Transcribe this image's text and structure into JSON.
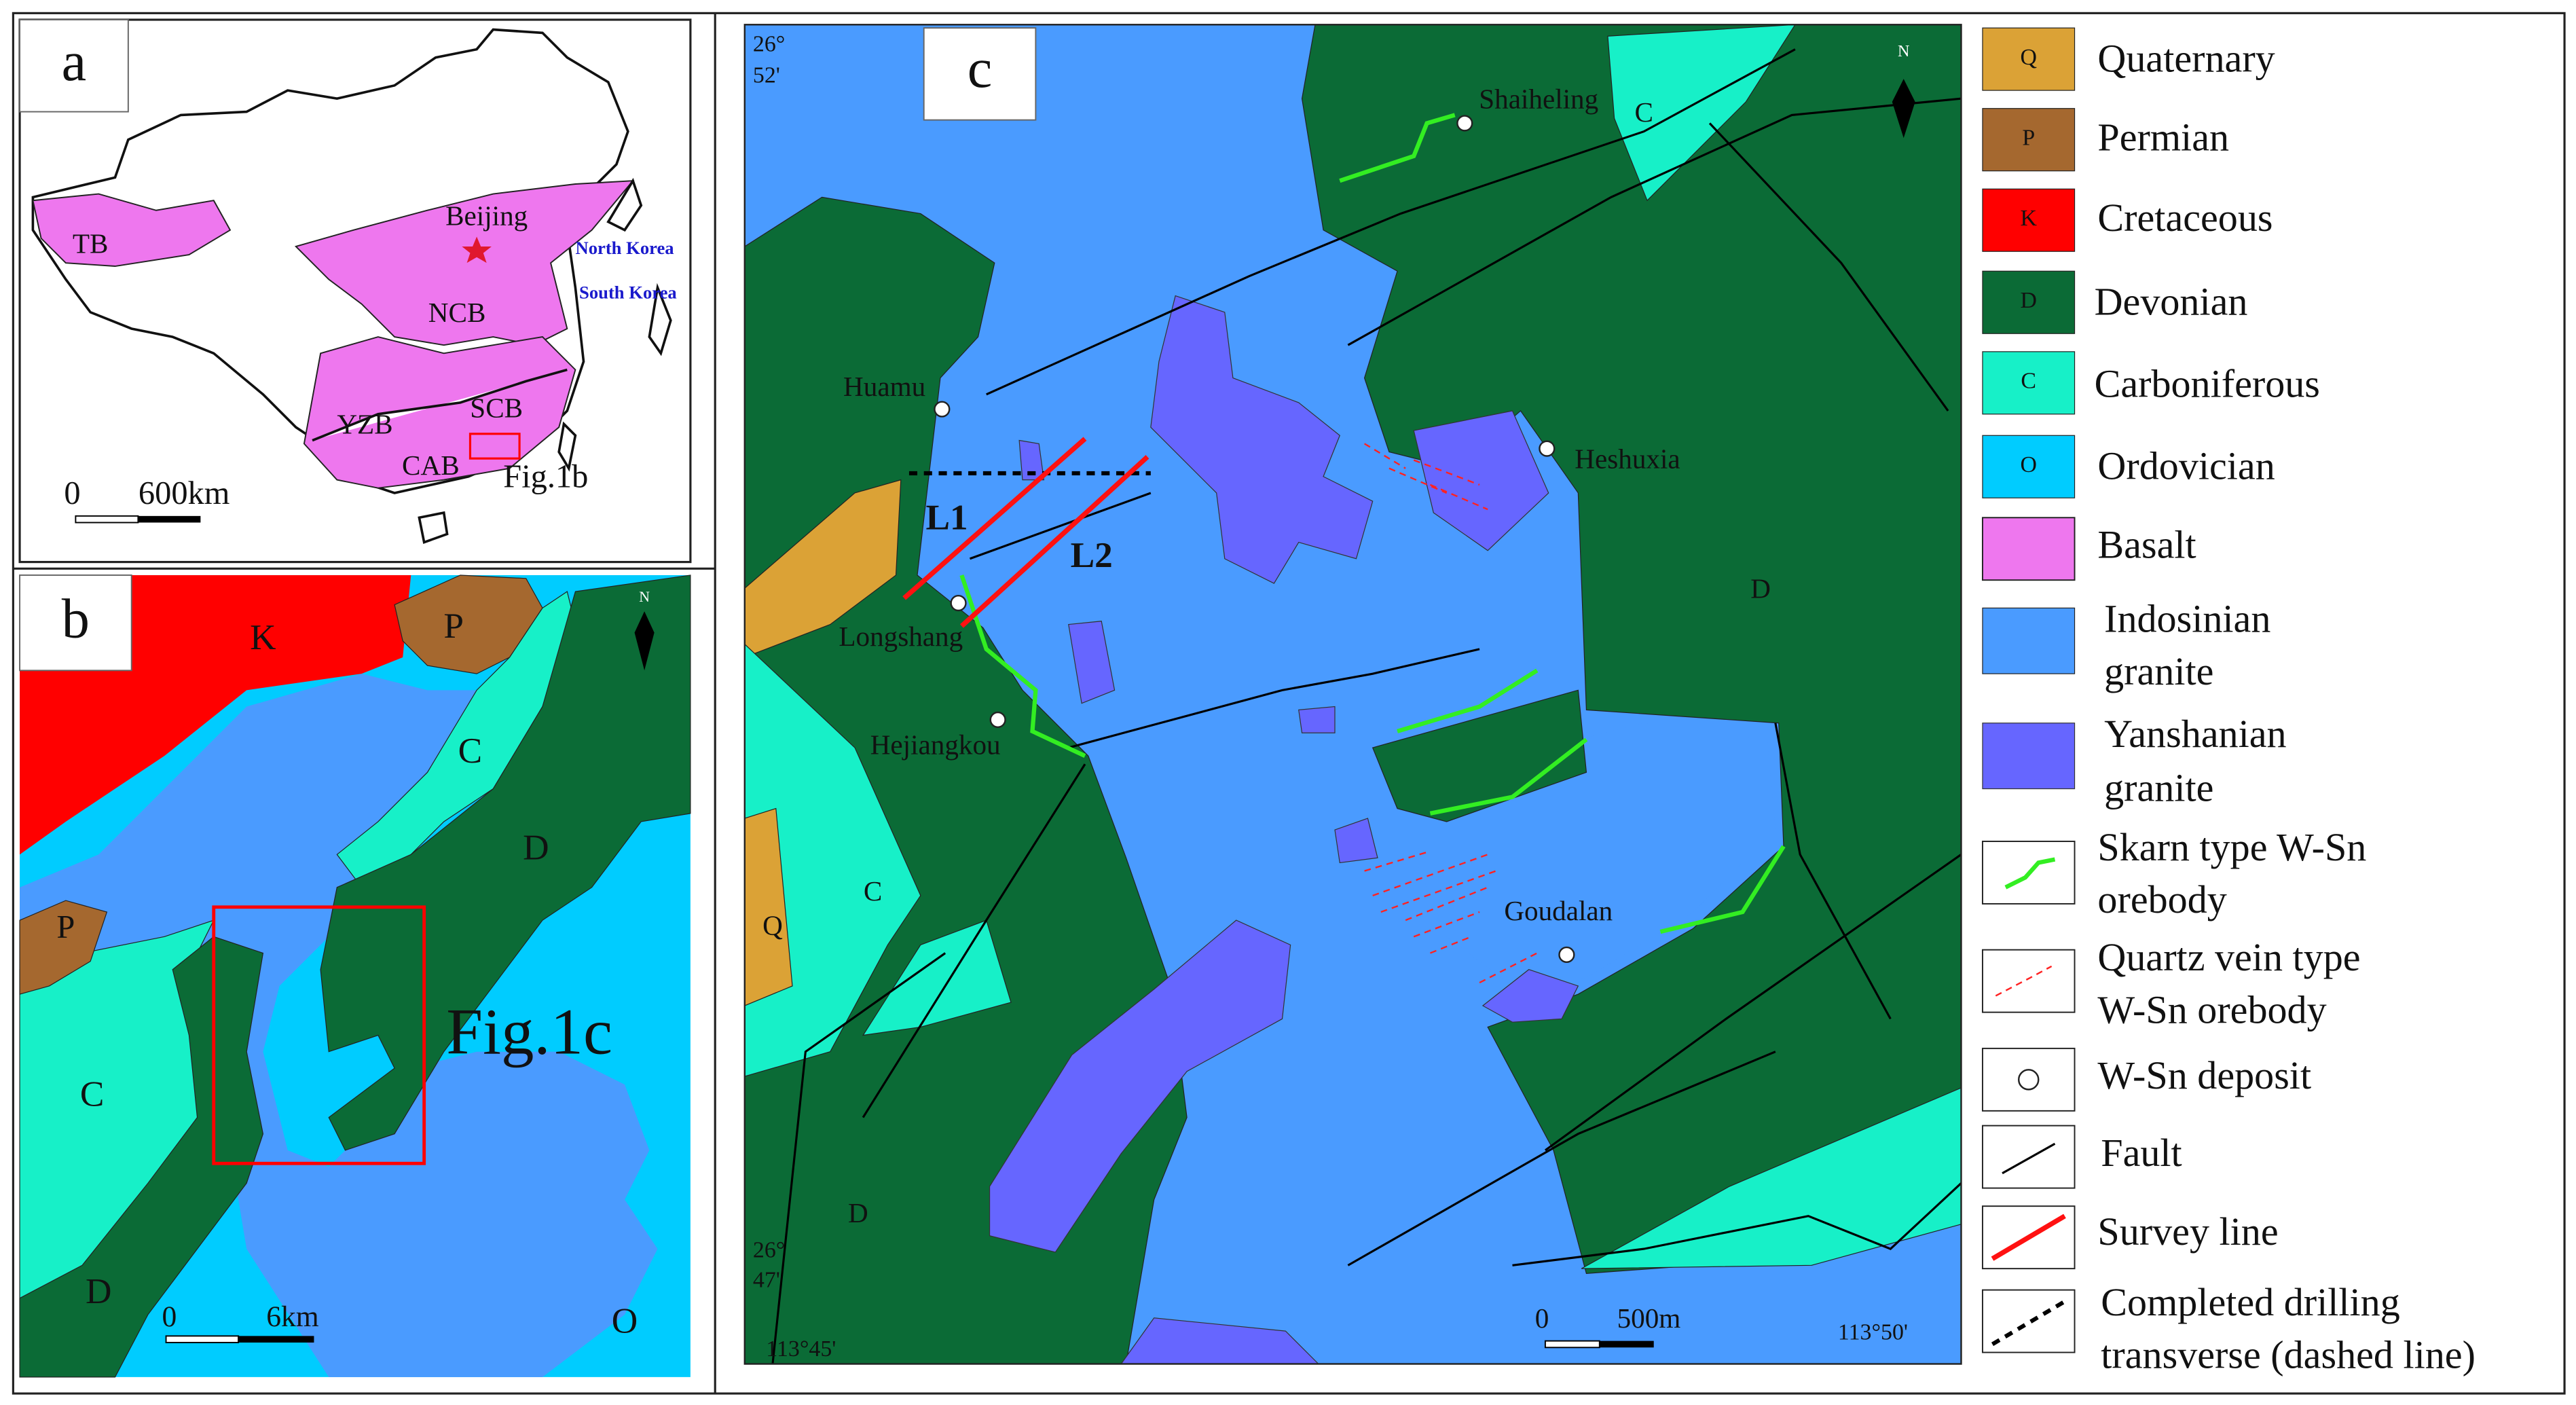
{
  "panel_a": {
    "label": "a",
    "regions": [
      "TB",
      "NCB",
      "YZB",
      "SCB",
      "CAB"
    ],
    "city": "Beijing",
    "countries": [
      "North Korea",
      "South Korea"
    ],
    "box_label": "Fig.1b",
    "scale": [
      "0",
      "600km"
    ]
  },
  "panel_b": {
    "label": "b",
    "units": [
      "K",
      "P",
      "C",
      "D",
      "P",
      "C",
      "D",
      "O"
    ],
    "box_label": "Fig.1c",
    "scale": [
      "0",
      "6km"
    ],
    "north": "N"
  },
  "panel_c": {
    "label": "c",
    "coords": {
      "lat_top": [
        "26°",
        "52'"
      ],
      "lat_bottom": [
        "26°",
        "47'"
      ],
      "lon_left": "113°45'",
      "lon_right": "113°50'"
    },
    "deposits": [
      "Shaiheling",
      "Huamu",
      "Heshuxia",
      "Longshang",
      "Hejiangkou",
      "Goudalan"
    ],
    "survey_lines": [
      "L1",
      "L2"
    ],
    "units": [
      "C",
      "D",
      "C",
      "Q",
      "D"
    ],
    "scale": [
      "0",
      "500m"
    ],
    "north": "N"
  },
  "legend": [
    {
      "symbol": "Q",
      "lines": [
        "Quaternary"
      ]
    },
    {
      "symbol": "P",
      "lines": [
        "Permian"
      ]
    },
    {
      "symbol": "K",
      "lines": [
        "Cretaceous"
      ]
    },
    {
      "symbol": "D",
      "lines": [
        "Devonian"
      ]
    },
    {
      "symbol": "C",
      "lines": [
        "Carboniferous"
      ]
    },
    {
      "symbol": "O",
      "lines": [
        "Ordovician"
      ]
    },
    {
      "lines": [
        "Basalt"
      ]
    },
    {
      "lines": [
        "Indosinian",
        "granite"
      ]
    },
    {
      "lines": [
        "Yanshanian",
        "granite"
      ]
    },
    {
      "lines": [
        "Skarn type W-Sn",
        "orebody"
      ]
    },
    {
      "lines": [
        "Quartz vein type",
        "W-Sn orebody"
      ]
    },
    {
      "lines": [
        "W-Sn deposit"
      ]
    },
    {
      "lines": [
        "Fault"
      ]
    },
    {
      "lines": [
        "Survey line"
      ]
    },
    {
      "lines": [
        "Completed drilling",
        "transverse (dashed line)"
      ]
    }
  ]
}
